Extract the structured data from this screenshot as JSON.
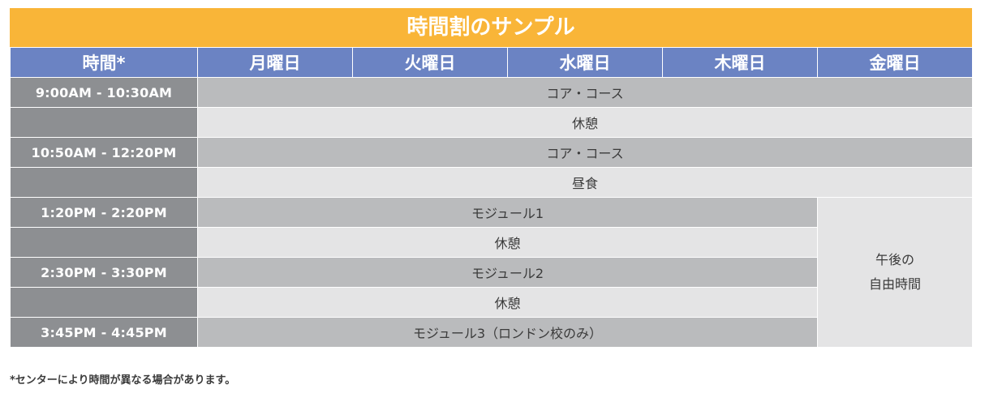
{
  "title": "時間割のサンプル",
  "header": {
    "time": "時間*",
    "days": [
      "月曜日",
      "火曜日",
      "水曜日",
      "木曜日",
      "金曜日"
    ]
  },
  "rows": [
    {
      "time": "9:00AM - 10:30AM",
      "content": "コア・コース"
    },
    {
      "time": "",
      "content": "休憩"
    },
    {
      "time": "10:50AM - 12:20PM",
      "content": "コア・コース"
    },
    {
      "time": "",
      "content": "昼食"
    },
    {
      "time": "1:20PM - 2:20PM",
      "content": "モジュール1"
    },
    {
      "time": "",
      "content": "休憩"
    },
    {
      "time": "2:30PM - 3:30PM",
      "content": "モジュール2"
    },
    {
      "time": "",
      "content": "休憩"
    },
    {
      "time": "3:45PM - 4:45PM",
      "content": "モジュール3（ロンドン校のみ）"
    }
  ],
  "friday_afternoon": {
    "line1": "午後の",
    "line2": "自由時間"
  },
  "footnote": "*センターにより時間が異なる場合があります。",
  "colors": {
    "title_bg": "#F9B538",
    "header_bg": "#6B83C3",
    "time_bg": "#8D8F92",
    "course_bg": "#BABBBD",
    "break_bg": "#E4E4E5"
  }
}
